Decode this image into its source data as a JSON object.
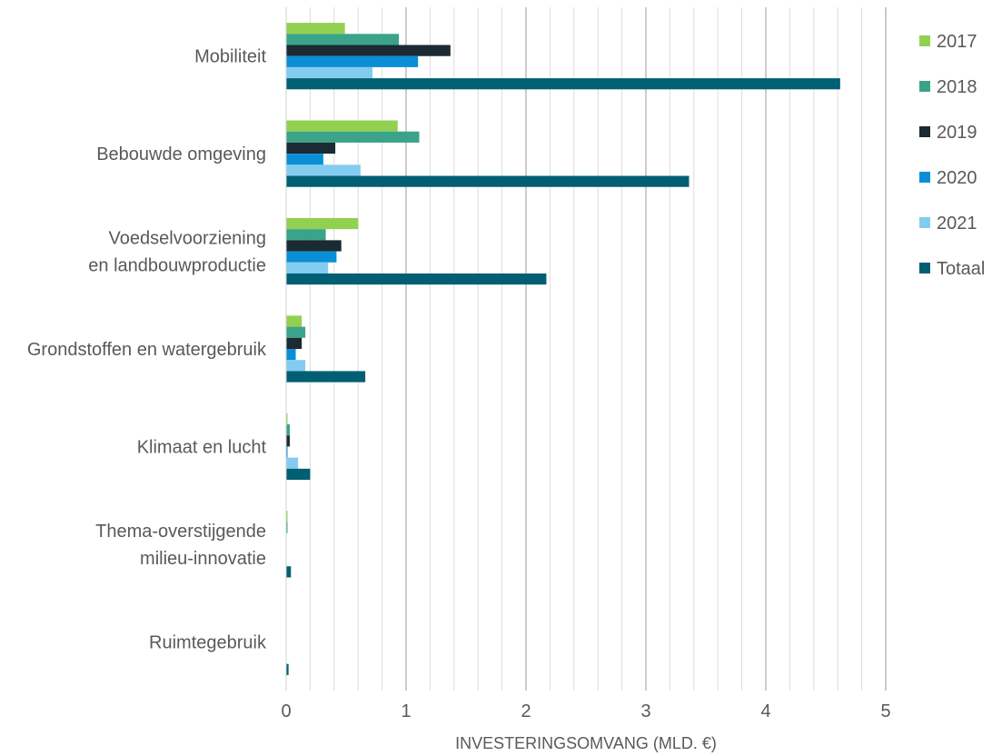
{
  "chart_data": {
    "type": "bar",
    "orientation": "horizontal",
    "title": "",
    "xlabel": "INVESTERINGSOMVANG (MLD. €)",
    "ylabel": "",
    "xlim": [
      0,
      5
    ],
    "x_ticks": [
      "0",
      "1",
      "2",
      "3",
      "4",
      "5"
    ],
    "grid": true,
    "legend_position": "right",
    "categories": [
      [
        "Mobiliteit"
      ],
      [
        "Bebouwde omgeving"
      ],
      [
        "Voedselvoorziening",
        "en landbouwproductie"
      ],
      [
        "Grondstoffen en watergebruik"
      ],
      [
        "Klimaat en lucht"
      ],
      [
        "Thema-overstijgende",
        "milieu-innovatie"
      ],
      [
        "Ruimtegebruik"
      ]
    ],
    "series": [
      {
        "name": "2017",
        "color": "#92d050",
        "values": [
          0.49,
          0.93,
          0.6,
          0.13,
          0.01,
          0.01,
          0.0
        ]
      },
      {
        "name": "2018",
        "color": "#3ba38a",
        "values": [
          0.94,
          1.11,
          0.33,
          0.16,
          0.03,
          0.01,
          0.0
        ]
      },
      {
        "name": "2019",
        "color": "#1b2a33",
        "values": [
          1.37,
          0.41,
          0.46,
          0.13,
          0.03,
          0.0,
          0.0
        ]
      },
      {
        "name": "2020",
        "color": "#0a8fd6",
        "values": [
          1.1,
          0.31,
          0.42,
          0.08,
          0.01,
          0.0,
          0.0
        ]
      },
      {
        "name": "2021",
        "color": "#83ccf0",
        "values": [
          0.72,
          0.62,
          0.35,
          0.16,
          0.1,
          0.0,
          0.0
        ]
      },
      {
        "name": "Totaal",
        "color": "#005f73",
        "values": [
          4.62,
          3.36,
          2.17,
          0.66,
          0.2,
          0.04,
          0.02
        ]
      }
    ]
  }
}
